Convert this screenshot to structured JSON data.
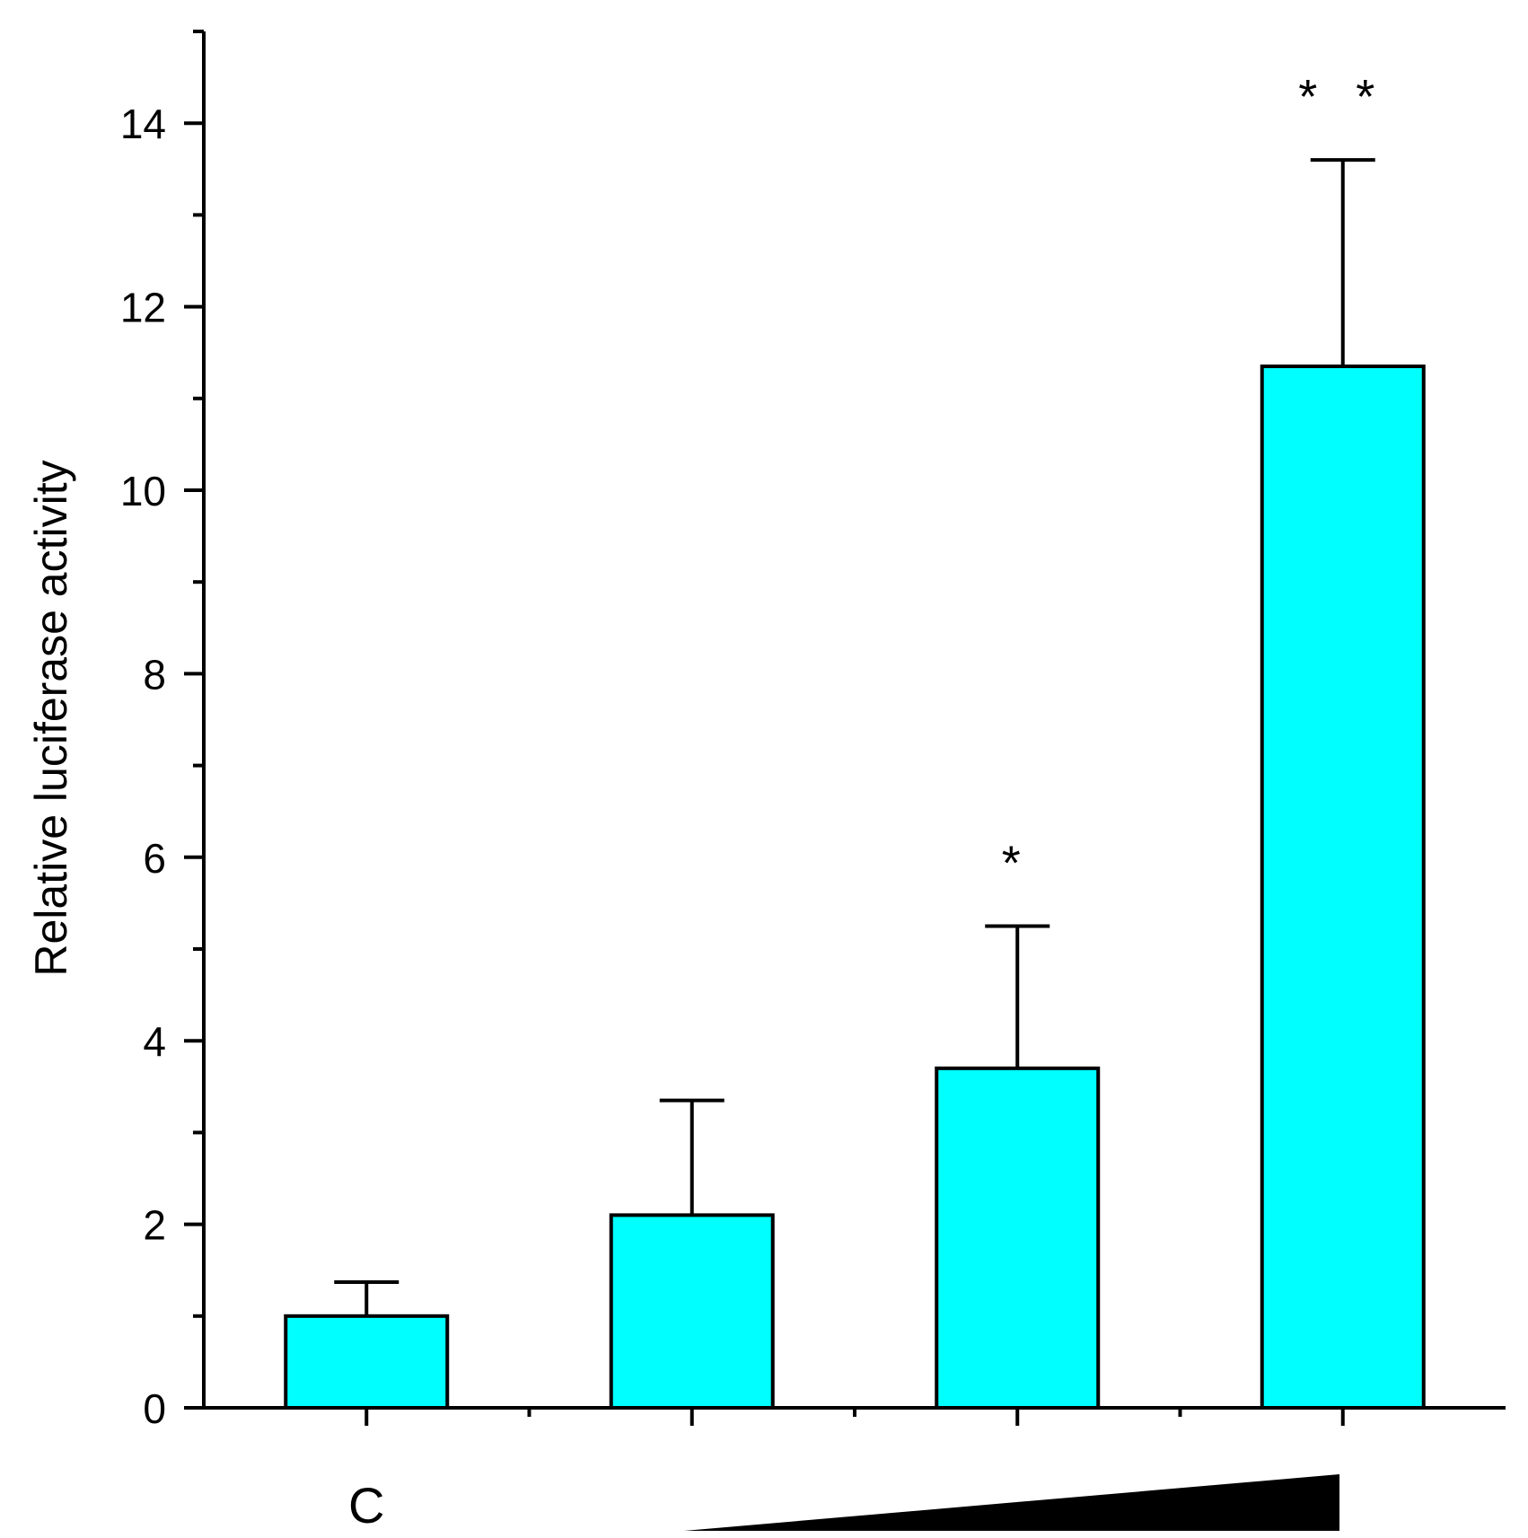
{
  "chart_data": {
    "type": "bar",
    "title": "",
    "xlabel": "",
    "ylabel": "Relative luciferase activity",
    "ylim": [
      0,
      15
    ],
    "yticks": [
      0,
      2,
      4,
      6,
      8,
      10,
      12,
      14
    ],
    "categories": [
      "C",
      "",
      "",
      ""
    ],
    "values": [
      1.0,
      2.1,
      3.7,
      11.35
    ],
    "errors": [
      0.37,
      1.25,
      1.55,
      2.25
    ],
    "significance": [
      "",
      "",
      "*",
      "**"
    ],
    "bar_color": "#00ffff",
    "dose_wedge": "increasing dose (triangle under bars 2-4)"
  }
}
